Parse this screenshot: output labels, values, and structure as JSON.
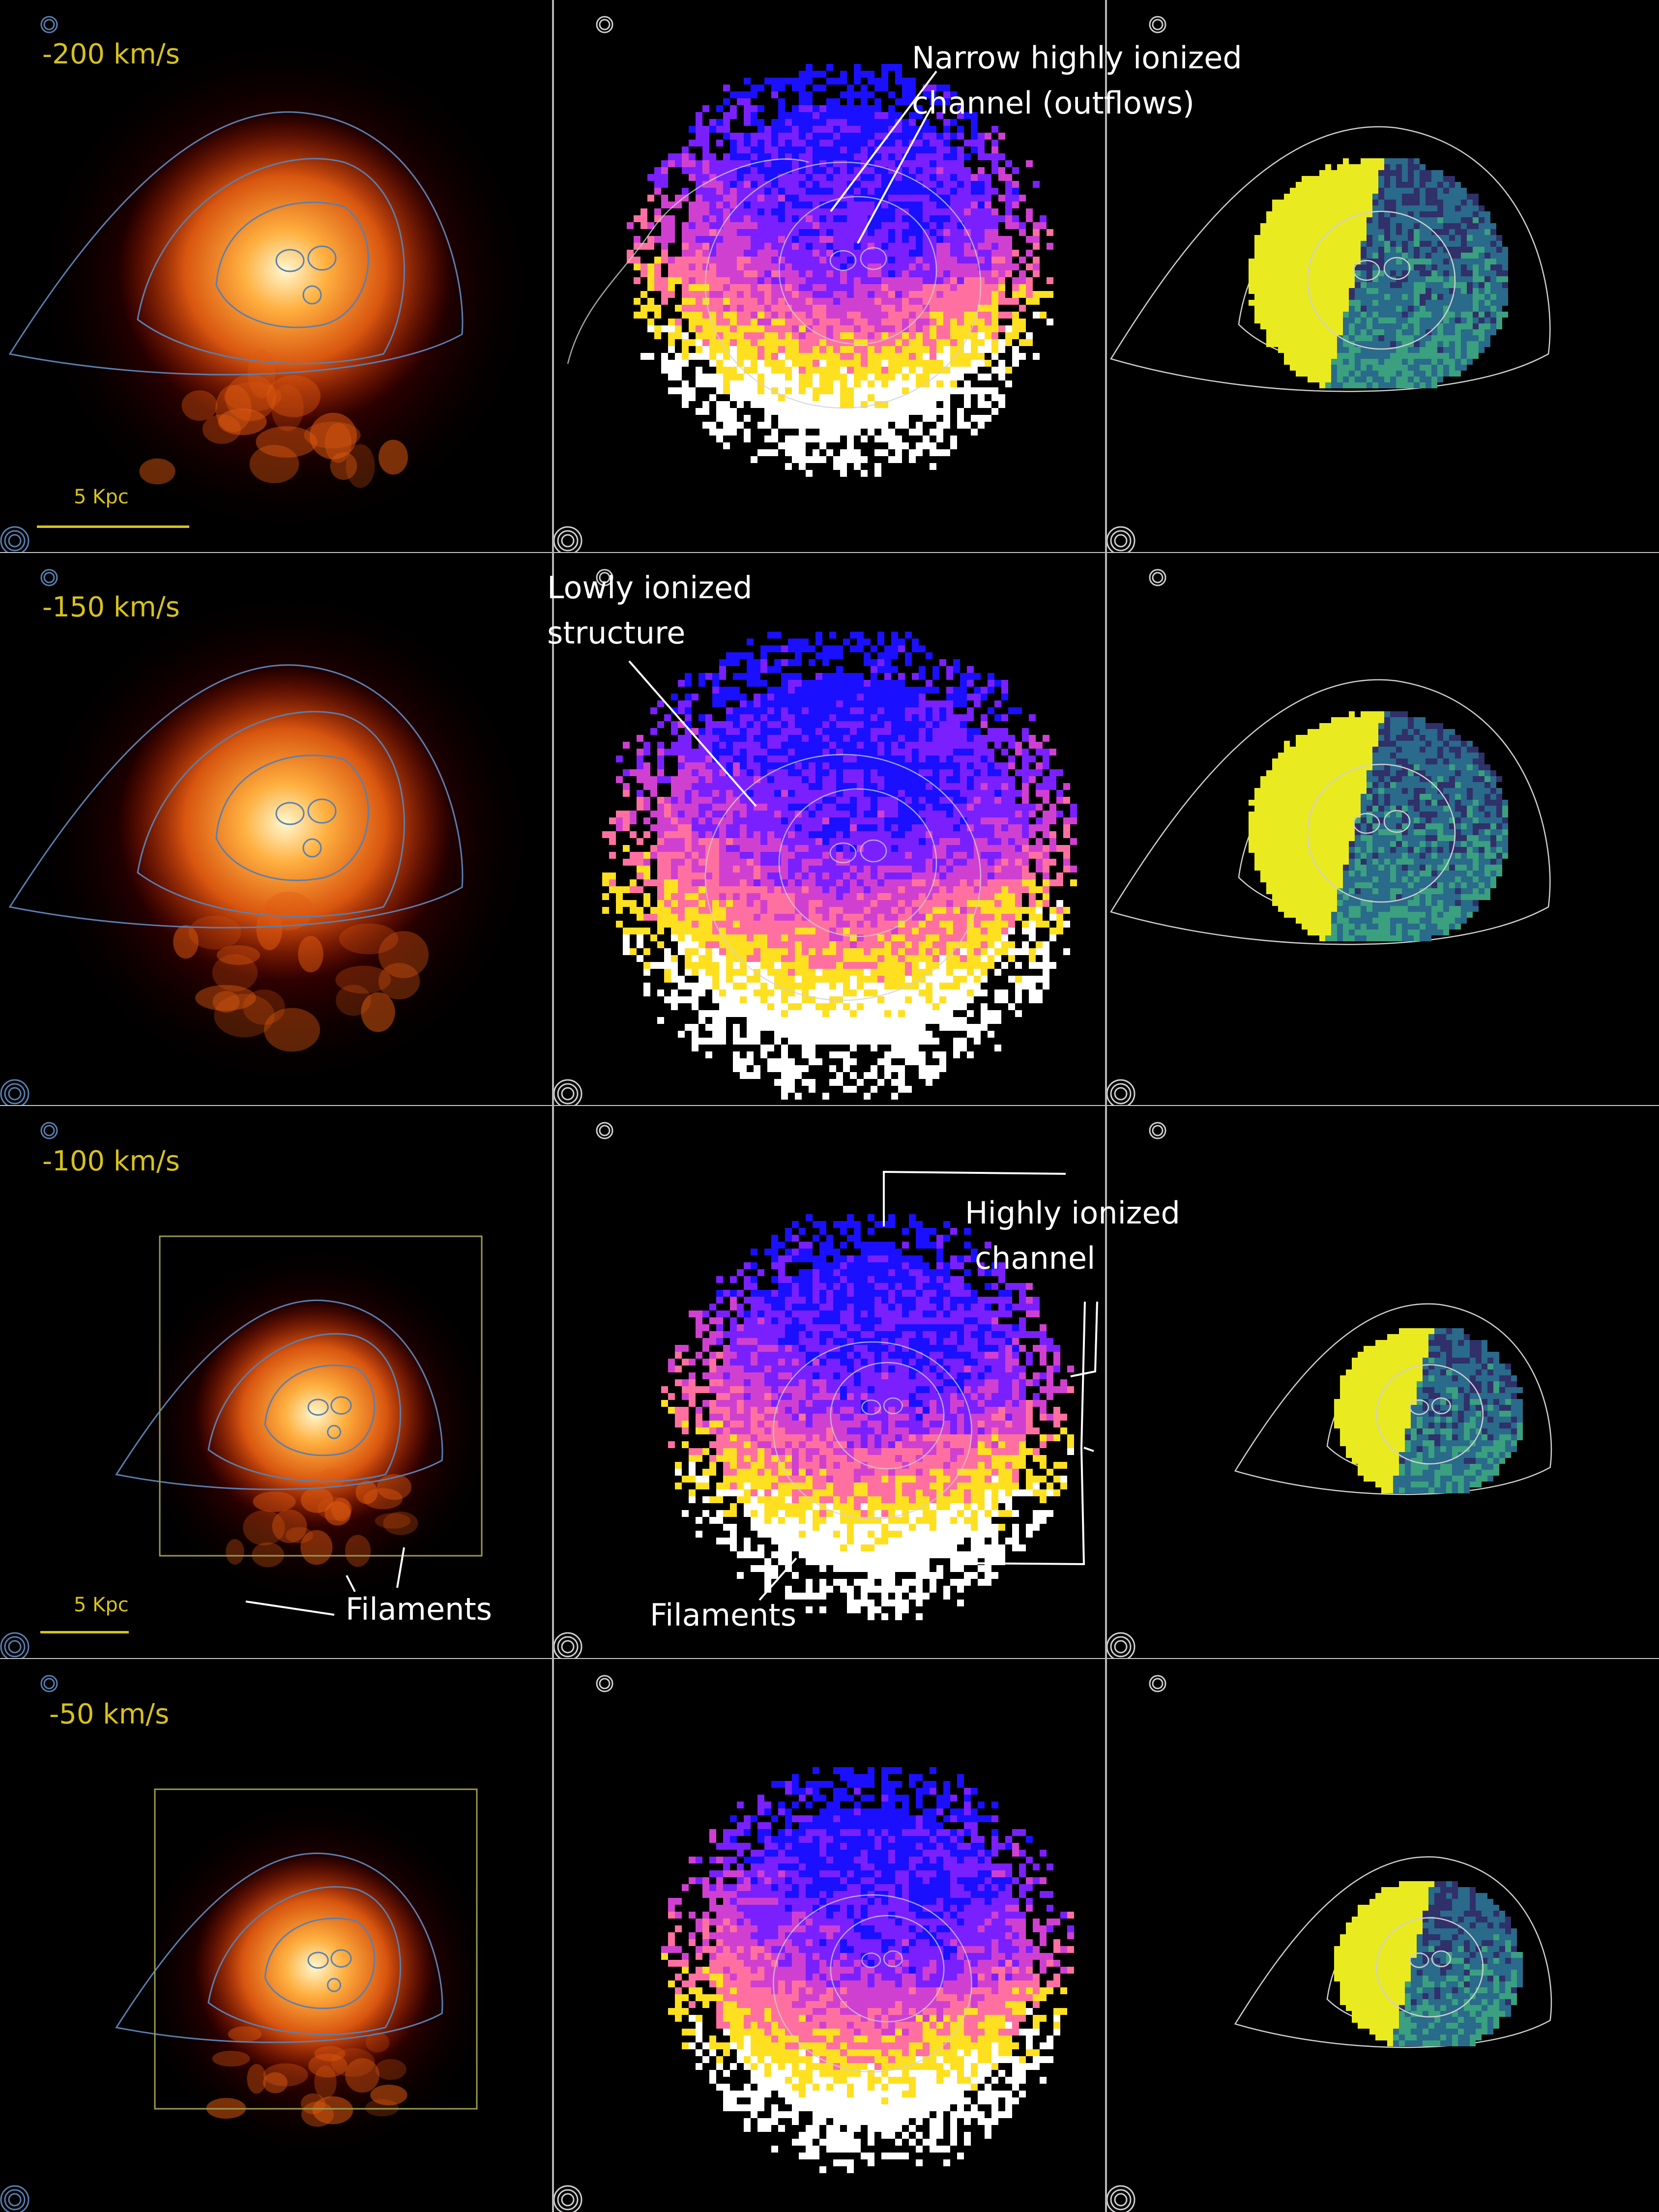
{
  "rows": [
    {
      "velocity": "-200 km/s",
      "scale": "5 Kpc"
    },
    {
      "velocity": "-150 km/s"
    },
    {
      "velocity": "-100 km/s",
      "scale": "5 Kpc"
    },
    {
      "velocity": "-50 km/s"
    }
  ],
  "annotations": {
    "narrow_channel": {
      "line1": "Narrow highly ionized",
      "line2": "channel (outflows)"
    },
    "lowly_ionized": {
      "line1": "Lowly ionized",
      "line2": "structure"
    },
    "highly_ionized": {
      "line1": "Highly ionized",
      "line2": "channel"
    },
    "filaments_left": "Filaments",
    "filaments_mid": "Filaments"
  },
  "colors": {
    "velocity_label": "#d8c21a",
    "scale_bar": "#d8c21a",
    "annotation_text": "#ffffff",
    "panel_divider": "#b8b8b8",
    "contour_left": "#5a7fb0",
    "contour_mid_right": "#d0d0d0",
    "colormap_left": [
      "#3a0000",
      "#a01a00",
      "#e05a10",
      "#ffb040",
      "#fff8d0"
    ],
    "colormap_middle": [
      "#1a10ff",
      "#7a20ff",
      "#d040d0",
      "#ff70a0",
      "#ffe020",
      "#ffffff"
    ],
    "colormap_right": [
      "#30306a",
      "#2a6a8a",
      "#3aa080",
      "#eaea20"
    ]
  }
}
